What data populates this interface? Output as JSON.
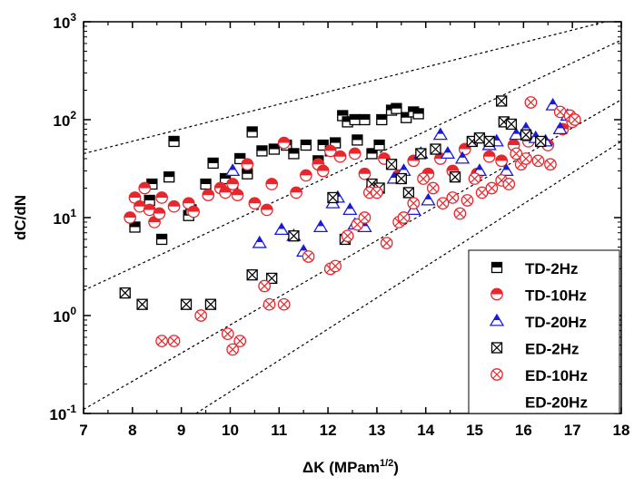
{
  "chart_data": {
    "type": "scatter",
    "xlabel": "ΔK (MPam",
    "xlabel_exponent": "1/2",
    "xlabel_close": ")",
    "ylabel": "dC/dN",
    "xlim": [
      7,
      18
    ],
    "ylim": [
      0.1,
      1000
    ],
    "y_scale": "log",
    "x_ticks": [
      "7",
      "8",
      "9",
      "10",
      "11",
      "12",
      "13",
      "14",
      "15",
      "16",
      "17",
      "18"
    ],
    "y_ticks": [
      {
        "value": 0.1,
        "base": "10",
        "exp": "-1"
      },
      {
        "value": 1,
        "base": "10",
        "exp": "0"
      },
      {
        "value": 10,
        "base": "10",
        "exp": "1"
      },
      {
        "value": 100,
        "base": "10",
        "exp": "2"
      },
      {
        "value": 1000,
        "base": "10",
        "exp": "3"
      }
    ],
    "grid": false,
    "legend_position": "bottom-right",
    "colors": {
      "black": "#000000",
      "red": "#e8262b",
      "blue": "#1a1adb"
    },
    "reference_lines": [
      {
        "x": [
          7,
          18
        ],
        "y": [
          45,
          1100
        ]
      },
      {
        "x": [
          7,
          18
        ],
        "y": [
          1.8,
          650
        ]
      },
      {
        "x": [
          7,
          18
        ],
        "y": [
          0.11,
          160
        ]
      },
      {
        "x": [
          9.3,
          18
        ],
        "y": [
          0.1,
          60
        ]
      }
    ],
    "series": [
      {
        "name": "TD-2Hz",
        "marker": "square-half",
        "color": "#000000",
        "points": [
          [
            8.05,
            8
          ],
          [
            8.35,
            15
          ],
          [
            8.4,
            22
          ],
          [
            8.6,
            6
          ],
          [
            8.75,
            26
          ],
          [
            8.85,
            60
          ],
          [
            9.15,
            10.5
          ],
          [
            9.2,
            12
          ],
          [
            9.5,
            22
          ],
          [
            9.65,
            36
          ],
          [
            9.9,
            25
          ],
          [
            10.05,
            20
          ],
          [
            10.2,
            40
          ],
          [
            10.35,
            28
          ],
          [
            10.45,
            75
          ],
          [
            10.65,
            48
          ],
          [
            10.9,
            50
          ],
          [
            11.15,
            55
          ],
          [
            11.3,
            45
          ],
          [
            11.55,
            55
          ],
          [
            11.8,
            38
          ],
          [
            11.9,
            55
          ],
          [
            12.05,
            48
          ],
          [
            12.15,
            58
          ],
          [
            12.3,
            110
          ],
          [
            12.4,
            95
          ],
          [
            12.55,
            100
          ],
          [
            12.6,
            62
          ],
          [
            12.75,
            100
          ],
          [
            12.9,
            45
          ],
          [
            13.05,
            55
          ],
          [
            13.1,
            100
          ],
          [
            13.3,
            125
          ],
          [
            13.4,
            130
          ],
          [
            13.6,
            105
          ],
          [
            13.75,
            120
          ],
          [
            13.85,
            115
          ]
        ]
      },
      {
        "name": "TD-10Hz",
        "marker": "circle-half",
        "color": "#e8262b",
        "points": [
          [
            7.95,
            10
          ],
          [
            8.05,
            16
          ],
          [
            8.15,
            13
          ],
          [
            8.25,
            20
          ],
          [
            8.35,
            12
          ],
          [
            8.45,
            9
          ],
          [
            8.55,
            11
          ],
          [
            8.6,
            16
          ],
          [
            8.85,
            13
          ],
          [
            9.15,
            14
          ],
          [
            9.25,
            11.5
          ],
          [
            9.55,
            17
          ],
          [
            9.8,
            20
          ],
          [
            9.9,
            18
          ],
          [
            10.05,
            22
          ],
          [
            10.15,
            17
          ],
          [
            10.35,
            35
          ],
          [
            10.5,
            14
          ],
          [
            10.75,
            12
          ],
          [
            10.85,
            22
          ],
          [
            11.1,
            58
          ],
          [
            11.35,
            18
          ],
          [
            11.55,
            27
          ],
          [
            11.8,
            35
          ],
          [
            11.9,
            30
          ],
          [
            12.05,
            48
          ],
          [
            12.25,
            42
          ],
          [
            12.55,
            45
          ],
          [
            12.75,
            28
          ],
          [
            12.9,
            20
          ],
          [
            13.15,
            40
          ],
          [
            13.45,
            27
          ],
          [
            13.75,
            38
          ],
          [
            14.05,
            28
          ],
          [
            14.3,
            40
          ],
          [
            14.55,
            30
          ],
          [
            14.8,
            50
          ],
          [
            15.05,
            28
          ],
          [
            15.3,
            42
          ],
          [
            15.55,
            38
          ],
          [
            15.8,
            55
          ],
          [
            16.1,
            60
          ],
          [
            16.5,
            55
          ],
          [
            16.8,
            80
          ],
          [
            17.0,
            95
          ]
        ]
      },
      {
        "name": "TD-20Hz",
        "marker": "triangle-half",
        "color": "#1a1adb",
        "points": [
          [
            10.05,
            30
          ],
          [
            10.6,
            5.5
          ],
          [
            11.05,
            7.5
          ],
          [
            11.3,
            6.5
          ],
          [
            11.5,
            4.5
          ],
          [
            11.85,
            8
          ],
          [
            12.1,
            14
          ],
          [
            12.2,
            16
          ],
          [
            12.45,
            12
          ],
          [
            12.55,
            8.5
          ],
          [
            12.75,
            8
          ],
          [
            13.35,
            25
          ],
          [
            13.55,
            30
          ],
          [
            13.75,
            12
          ],
          [
            13.9,
            45
          ],
          [
            14.05,
            15
          ],
          [
            14.3,
            70
          ],
          [
            14.45,
            45
          ],
          [
            14.75,
            40
          ],
          [
            15.1,
            30
          ],
          [
            15.3,
            55
          ],
          [
            15.45,
            60
          ],
          [
            15.65,
            30
          ],
          [
            15.85,
            70
          ],
          [
            16.05,
            80
          ],
          [
            16.25,
            65
          ],
          [
            16.45,
            60
          ],
          [
            16.6,
            140
          ],
          [
            16.75,
            80
          ],
          [
            16.9,
            110
          ]
        ]
      },
      {
        "name": "ED-2Hz",
        "marker": "square-x",
        "color": "#000000",
        "points": [
          [
            7.85,
            1.7
          ],
          [
            8.2,
            1.3
          ],
          [
            9.1,
            1.3
          ],
          [
            9.6,
            1.3
          ],
          [
            10.45,
            2.6
          ],
          [
            10.85,
            2.4
          ],
          [
            11.3,
            6.5
          ],
          [
            12.1,
            16
          ],
          [
            12.35,
            6
          ],
          [
            12.9,
            22
          ],
          [
            13.05,
            20
          ],
          [
            13.3,
            35
          ],
          [
            13.5,
            25
          ],
          [
            13.65,
            18
          ],
          [
            13.9,
            45
          ],
          [
            14.2,
            50
          ],
          [
            14.6,
            26
          ],
          [
            14.95,
            60
          ],
          [
            15.1,
            65
          ],
          [
            15.3,
            60
          ],
          [
            15.55,
            155
          ],
          [
            15.6,
            95
          ],
          [
            15.75,
            90
          ],
          [
            16.05,
            70
          ],
          [
            16.35,
            60
          ]
        ]
      },
      {
        "name": "ED-10Hz",
        "marker": "circle-x",
        "color": "#e8262b",
        "points": [
          [
            8.6,
            0.55
          ],
          [
            8.85,
            0.55
          ],
          [
            9.4,
            1.0
          ],
          [
            9.95,
            0.65
          ],
          [
            10.05,
            0.45
          ],
          [
            10.2,
            0.55
          ],
          [
            10.7,
            2.0
          ],
          [
            10.8,
            1.3
          ],
          [
            11.1,
            1.3
          ],
          [
            11.6,
            4.0
          ],
          [
            12.05,
            3.0
          ],
          [
            12.15,
            3.2
          ],
          [
            12.4,
            6.5
          ],
          [
            12.6,
            8.5
          ],
          [
            12.75,
            10
          ],
          [
            12.85,
            18
          ],
          [
            13.0,
            18
          ],
          [
            13.2,
            5.5
          ],
          [
            13.45,
            9
          ],
          [
            13.55,
            10
          ],
          [
            13.75,
            14
          ],
          [
            13.95,
            25
          ],
          [
            14.15,
            20
          ],
          [
            14.35,
            14
          ],
          [
            14.55,
            16
          ],
          [
            14.7,
            11
          ],
          [
            14.85,
            15
          ],
          [
            15.0,
            25
          ],
          [
            15.15,
            18
          ],
          [
            15.35,
            20
          ],
          [
            15.55,
            24
          ],
          [
            15.7,
            22
          ],
          [
            15.85,
            45
          ],
          [
            15.95,
            35
          ],
          [
            16.05,
            40
          ],
          [
            16.15,
            150
          ],
          [
            16.3,
            38
          ],
          [
            16.55,
            35
          ],
          [
            16.75,
            120
          ],
          [
            16.95,
            110
          ],
          [
            17.05,
            100
          ]
        ]
      },
      {
        "name": "ED-20Hz",
        "marker": "none",
        "color": "#000000",
        "points": []
      }
    ]
  }
}
